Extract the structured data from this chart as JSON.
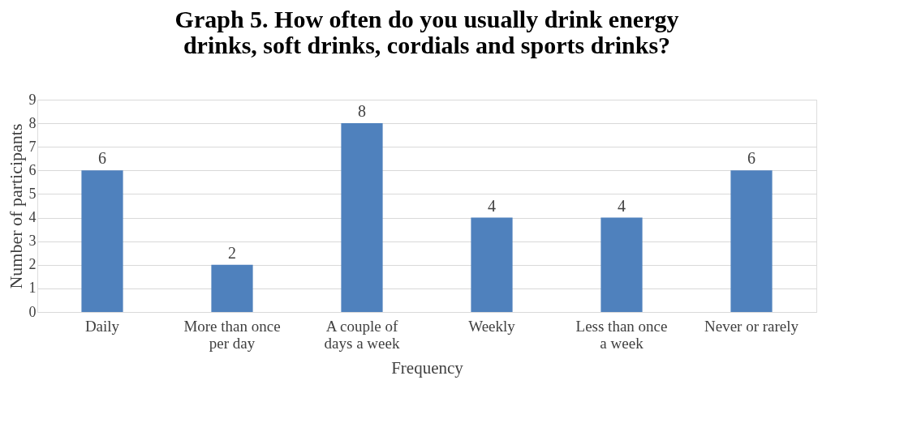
{
  "chart_data": {
    "type": "bar",
    "title": "Graph 5. How often do you usually drink energy drinks, soft drinks, cordials and sports drinks?",
    "xlabel": "Frequency",
    "ylabel": "Number of participants",
    "categories": [
      "Daily",
      "More than once per day",
      "A couple of days a week",
      "Weekly",
      "Less than once a week",
      "Never or rarely"
    ],
    "values": [
      6,
      2,
      8,
      4,
      4,
      6
    ],
    "color": "#4f81bd",
    "ylim": [
      0,
      9
    ],
    "yticks": [
      0,
      1,
      2,
      3,
      4,
      5,
      6,
      7,
      8,
      9
    ],
    "grid": "y",
    "data_labels": true
  }
}
